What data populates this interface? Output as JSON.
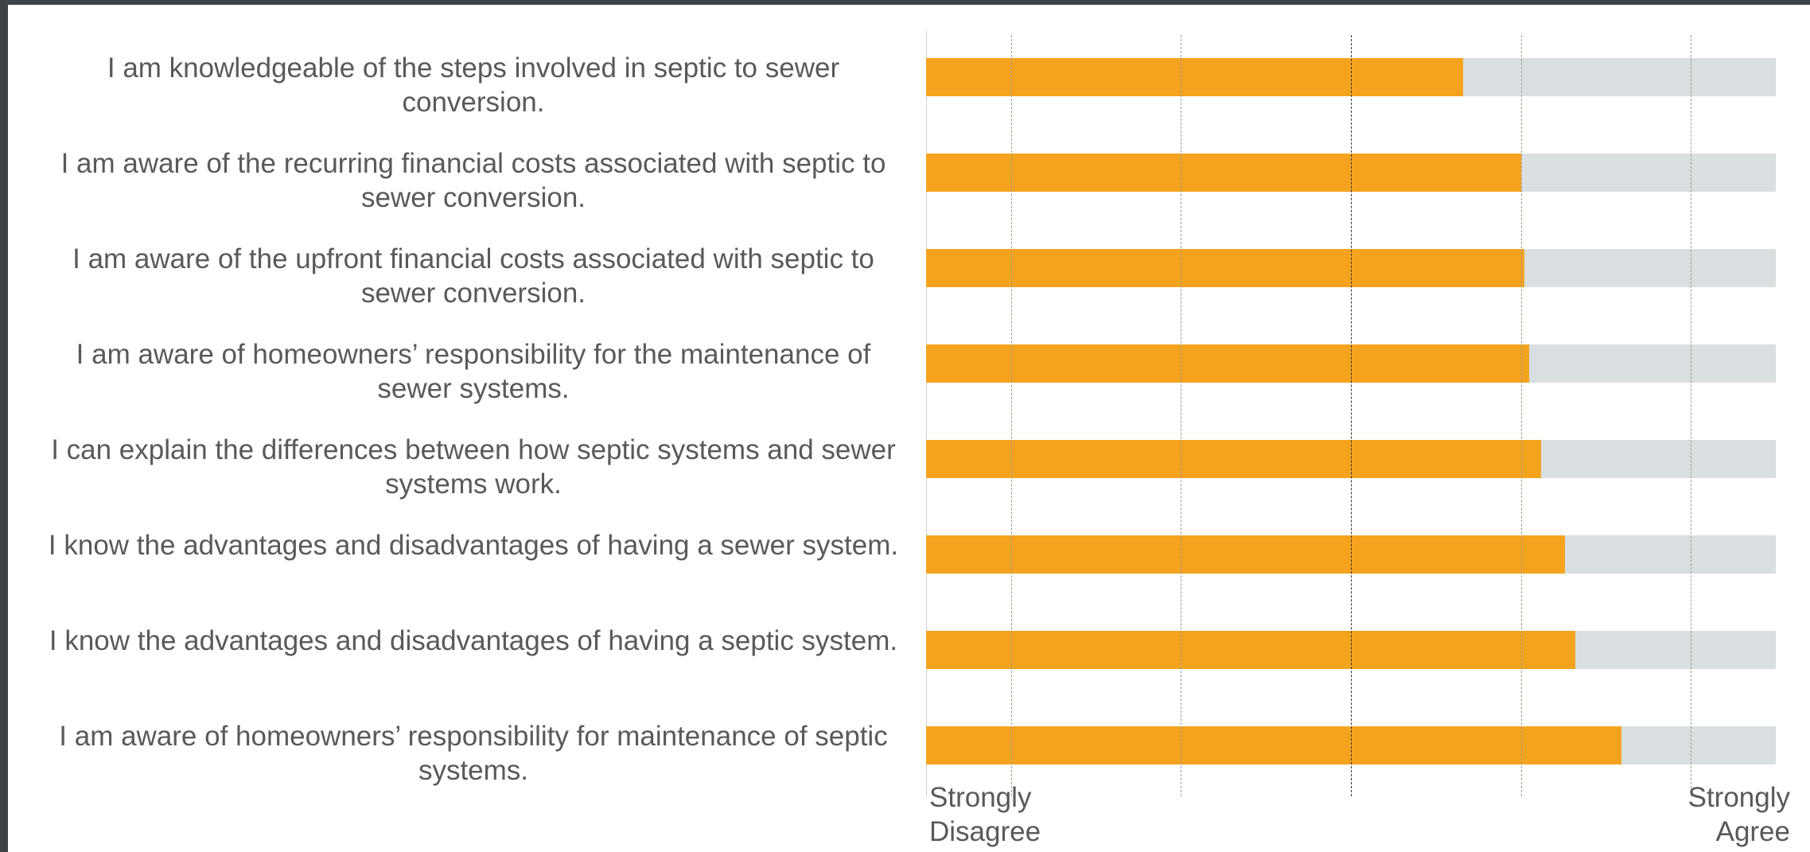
{
  "chart_data": {
    "type": "bar",
    "orientation": "horizontal",
    "categories": [
      "I am knowledgeable of the steps involved in septic to sewer conversion.",
      "I am aware of the recurring financial costs associated with septic to sewer conversion.",
      "I am aware of the upfront financial costs associated with septic to sewer conversion.",
      "I am aware of homeowners’ responsibility for the maintenance of sewer systems.",
      "I can explain the differences between how septic systems and sewer systems work.",
      "I know the advantages and disadvantages of having a sewer system.",
      "I know the advantages and disadvantages of having a septic system.",
      "I am aware of homeowners’ responsibility for maintenance of septic systems."
    ],
    "values": [
      3.66,
      4.0,
      4.02,
      4.05,
      4.12,
      4.26,
      4.32,
      4.59
    ],
    "color": "#f5a31f",
    "xlim": [
      0.5,
      5.5
    ],
    "xticks": [
      1,
      2,
      3,
      4,
      5
    ],
    "grid": true,
    "axis_end_labels": [
      "Strongly Disagree",
      "Strongly Agree"
    ]
  }
}
